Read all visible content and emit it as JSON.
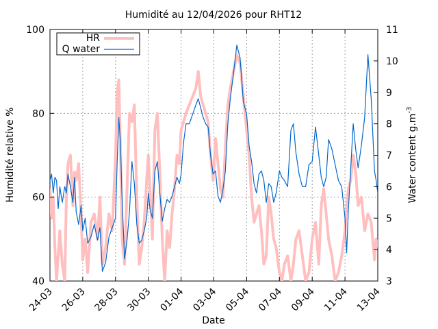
{
  "chart_data": {
    "type": "line",
    "title": "Humidité au 12/04/2026 pour RHT12",
    "xlabel": "Date",
    "ylabel": "Humidité relative %",
    "y2label": "Water content g.m",
    "y2label_sup": "-3",
    "ylim": [
      40,
      100
    ],
    "y2lim": [
      3,
      11
    ],
    "xlim": [
      0,
      20
    ],
    "grid": true,
    "legend_position": "top-left",
    "y_ticks": [
      40,
      60,
      80,
      100
    ],
    "y2_ticks": [
      3,
      4,
      5,
      6,
      7,
      8,
      9,
      10,
      11
    ],
    "x_ticks": [
      {
        "x": 0,
        "label": "24-03"
      },
      {
        "x": 2,
        "label": "26-03"
      },
      {
        "x": 4,
        "label": "28-03"
      },
      {
        "x": 6,
        "label": "30-03"
      },
      {
        "x": 8,
        "label": "01-04"
      },
      {
        "x": 10,
        "label": "03-04"
      },
      {
        "x": 12,
        "label": "05-04"
      },
      {
        "x": 14,
        "label": "07-04"
      },
      {
        "x": 16,
        "label": "09-04"
      },
      {
        "x": 18,
        "label": "11-04"
      },
      {
        "x": 20,
        "label": "13-04"
      }
    ],
    "series": [
      {
        "name": "HR",
        "axis": "left",
        "color": "#ffbfbf",
        "x": [
          0,
          0.1,
          0.2,
          0.3,
          0.4,
          0.5,
          0.6,
          0.75,
          0.9,
          1.0,
          1.1,
          1.25,
          1.4,
          1.5,
          1.6,
          1.75,
          1.9,
          2.0,
          2.15,
          2.3,
          2.5,
          2.7,
          2.9,
          3.05,
          3.2,
          3.4,
          3.6,
          3.8,
          4.0,
          4.1,
          4.2,
          4.3,
          4.4,
          4.55,
          4.7,
          4.85,
          5.0,
          5.15,
          5.3,
          5.45,
          5.6,
          5.75,
          5.9,
          6.0,
          6.1,
          6.25,
          6.4,
          6.55,
          6.7,
          6.85,
          7.0,
          7.15,
          7.3,
          7.45,
          7.6,
          7.75,
          7.9,
          8.0,
          8.15,
          8.3,
          8.5,
          8.7,
          8.9,
          9.05,
          9.2,
          9.35,
          9.5,
          9.65,
          9.8,
          9.95,
          10.1,
          10.25,
          10.4,
          10.55,
          10.7,
          10.85,
          11.0,
          11.2,
          11.4,
          11.6,
          11.8,
          12.0,
          12.15,
          12.3,
          12.45,
          12.6,
          12.75,
          12.9,
          13.05,
          13.2,
          13.35,
          13.5,
          13.65,
          13.8,
          14.0,
          14.15,
          14.3,
          14.5,
          14.7,
          14.85,
          15.0,
          15.2,
          15.4,
          15.6,
          15.8,
          16.0,
          16.2,
          16.4,
          16.55,
          16.7,
          16.85,
          17.0,
          17.2,
          17.4,
          17.6,
          17.8,
          18.0,
          18.1,
          18.2,
          18.35,
          18.5,
          18.65,
          18.8,
          19.0,
          19.2,
          19.4,
          19.6,
          19.8,
          19.9,
          20.0
        ],
        "values": [
          62,
          55,
          60,
          48,
          40,
          46,
          52,
          44,
          40,
          60,
          68,
          70,
          58,
          66,
          64,
          68,
          56,
          45,
          50,
          42,
          54,
          56,
          50,
          60,
          44,
          48,
          56,
          52,
          70,
          85,
          88,
          72,
          50,
          44,
          62,
          80,
          78,
          82,
          60,
          44,
          48,
          54,
          64,
          70,
          62,
          50,
          76,
          80,
          66,
          50,
          40,
          52,
          48,
          56,
          62,
          70,
          68,
          76,
          78,
          80,
          82,
          84,
          86,
          90,
          84,
          82,
          80,
          78,
          70,
          64,
          74,
          68,
          62,
          60,
          72,
          82,
          86,
          90,
          94,
          92,
          84,
          76,
          70,
          60,
          54,
          56,
          58,
          52,
          44,
          46,
          60,
          56,
          50,
          48,
          42,
          40,
          44,
          46,
          40,
          44,
          50,
          52,
          46,
          40,
          42,
          50,
          54,
          44,
          58,
          62,
          56,
          50,
          46,
          40,
          42,
          46,
          52,
          58,
          62,
          64,
          70,
          66,
          58,
          60,
          52,
          56,
          54,
          45,
          50,
          48
        ]
      },
      {
        "name": "Q water",
        "axis": "right",
        "color": "#0066cc",
        "x": [
          0,
          0.1,
          0.2,
          0.3,
          0.4,
          0.5,
          0.6,
          0.75,
          0.9,
          1.0,
          1.1,
          1.25,
          1.4,
          1.5,
          1.6,
          1.75,
          1.9,
          2.0,
          2.15,
          2.3,
          2.5,
          2.7,
          2.9,
          3.05,
          3.2,
          3.4,
          3.6,
          3.8,
          4.0,
          4.1,
          4.2,
          4.3,
          4.4,
          4.55,
          4.7,
          4.85,
          5.0,
          5.15,
          5.3,
          5.45,
          5.6,
          5.75,
          5.9,
          6.0,
          6.1,
          6.25,
          6.4,
          6.55,
          6.7,
          6.85,
          7.0,
          7.15,
          7.3,
          7.45,
          7.6,
          7.75,
          7.9,
          8.0,
          8.15,
          8.3,
          8.5,
          8.7,
          8.9,
          9.05,
          9.2,
          9.35,
          9.5,
          9.65,
          9.8,
          9.95,
          10.1,
          10.25,
          10.4,
          10.55,
          10.7,
          10.85,
          11.0,
          11.2,
          11.4,
          11.6,
          11.8,
          12.0,
          12.15,
          12.3,
          12.45,
          12.6,
          12.75,
          12.9,
          13.05,
          13.2,
          13.35,
          13.5,
          13.65,
          13.8,
          14.0,
          14.15,
          14.3,
          14.5,
          14.7,
          14.85,
          15.0,
          15.2,
          15.4,
          15.6,
          15.8,
          16.0,
          16.2,
          16.4,
          16.55,
          16.7,
          16.85,
          17.0,
          17.2,
          17.4,
          17.6,
          17.8,
          18.0,
          18.1,
          18.2,
          18.35,
          18.5,
          18.65,
          18.8,
          19.0,
          19.2,
          19.4,
          19.6,
          19.8,
          19.9,
          20.0
        ],
        "values": [
          6.2,
          6.4,
          5.8,
          6.3,
          6.2,
          5.3,
          6.0,
          5.5,
          6.0,
          5.8,
          6.4,
          6.0,
          5.5,
          6.3,
          5.2,
          4.8,
          5.4,
          4.6,
          5.0,
          4.2,
          4.4,
          4.8,
          4.3,
          4.7,
          3.3,
          3.6,
          4.4,
          4.7,
          5.0,
          6.8,
          8.2,
          7.4,
          5.6,
          3.7,
          4.3,
          5.2,
          6.8,
          6.1,
          4.8,
          4.2,
          4.3,
          4.6,
          5.0,
          5.8,
          5.3,
          5.0,
          6.5,
          6.8,
          5.8,
          4.9,
          5.3,
          5.6,
          5.5,
          5.7,
          6.0,
          6.3,
          6.1,
          6.4,
          7.4,
          8.0,
          8.0,
          8.3,
          8.6,
          8.8,
          8.5,
          8.2,
          8.0,
          7.9,
          7.0,
          6.4,
          6.5,
          5.7,
          5.5,
          5.9,
          6.5,
          8.0,
          8.8,
          9.6,
          10.5,
          10.1,
          8.7,
          8.3,
          7.3,
          6.8,
          6.1,
          5.8,
          6.4,
          6.5,
          6.2,
          5.5,
          6.1,
          6.0,
          5.5,
          5.8,
          6.5,
          6.3,
          6.2,
          6.0,
          7.8,
          8.0,
          7.1,
          6.4,
          6.0,
          6.0,
          6.7,
          6.8,
          7.9,
          7.0,
          6.3,
          6.0,
          6.3,
          7.5,
          7.2,
          6.7,
          6.2,
          6.0,
          5.0,
          3.9,
          5.2,
          6.6,
          8.0,
          7.2,
          6.6,
          7.3,
          8.2,
          10.2,
          8.8,
          6.5,
          6.2,
          5.8
        ]
      }
    ]
  }
}
